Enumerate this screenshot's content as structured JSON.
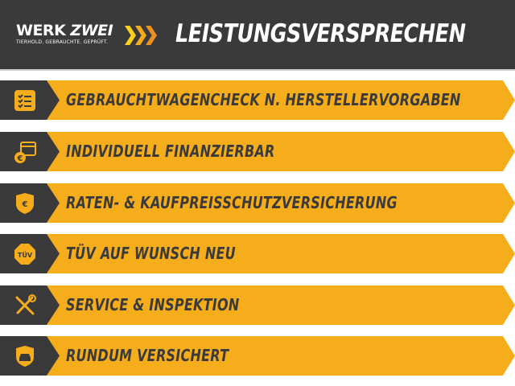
{
  "header": {
    "logo_werk": "WERK",
    "logo_zwei": "ZWEI",
    "logo_tagline": "TIERHOLD. GEBRAUCHTE. GEPRÜFT.",
    "title": "LEISTUNGSVERSPRECHEN"
  },
  "colors": {
    "accent": "#f6ad1b",
    "dark": "#3a3a3a"
  },
  "items": [
    {
      "label": "GEBRAUCHTWAGENCHECK N. HERSTELLERVORGABEN",
      "icon": "checklist-icon"
    },
    {
      "label": "INDIVIDUELL FINANZIERBAR",
      "icon": "calendar-euro-icon"
    },
    {
      "label": "RATEN- & KAUFPREISSCHUTZVERSICHERUNG",
      "icon": "shield-euro-icon"
    },
    {
      "label": "TÜV AUF WUNSCH NEU",
      "icon": "tuv-badge-icon",
      "icon_text": "TÜV"
    },
    {
      "label": "SERVICE & INSPEKTION",
      "icon": "tools-icon"
    },
    {
      "label": "RUNDUM VERSICHERT",
      "icon": "shield-car-icon"
    }
  ]
}
